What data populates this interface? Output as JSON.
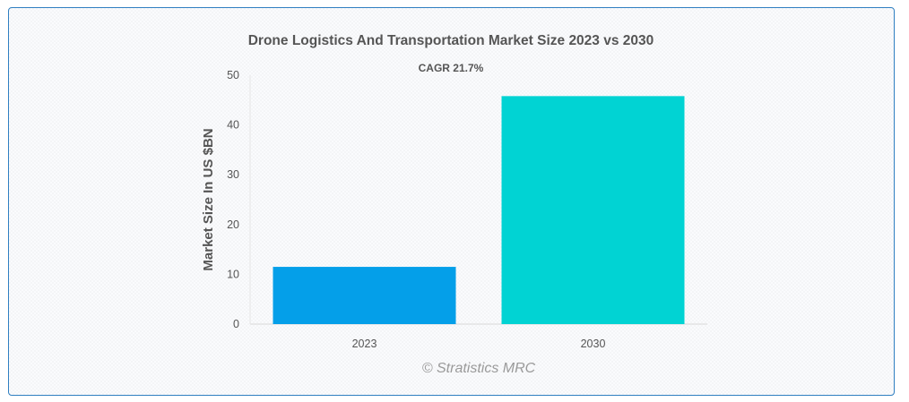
{
  "chart_data": {
    "type": "bar",
    "title": "Drone Logistics And Transportation Market Size 2023 vs 2030",
    "subtitle": "CAGR 21.7%",
    "categories": [
      "2023",
      "2030"
    ],
    "values": [
      11.5,
      45.8
    ],
    "colors": [
      "#049fe9",
      "#01d3d3"
    ],
    "xlabel": "",
    "ylabel": "Market Size In US $BN",
    "ylim": [
      0,
      50
    ],
    "yticks": [
      0,
      10,
      20,
      30,
      40,
      50
    ],
    "grid": false,
    "legend": "none"
  },
  "watermark": "© Stratistics MRC"
}
